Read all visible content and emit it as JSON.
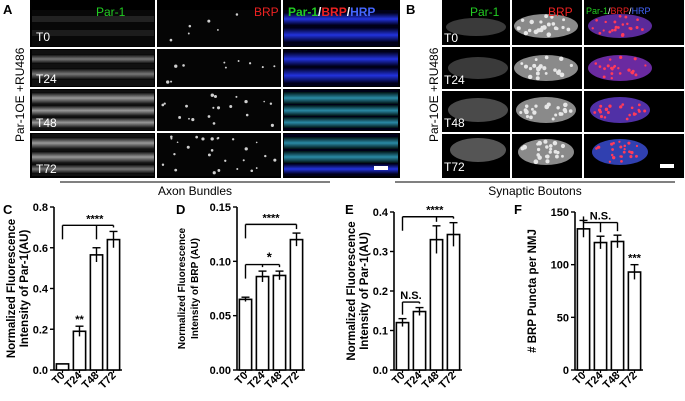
{
  "panel_letters": [
    "A",
    "B",
    "C",
    "D",
    "E",
    "F"
  ],
  "panel_a": {
    "headers": [
      {
        "text": "Par-1",
        "color": "#22cc22"
      },
      {
        "text": "BRP",
        "color": "#ee2222"
      }
    ],
    "merge_header": [
      {
        "text": "Par-1",
        "color": "#22cc22"
      },
      {
        "text": "/",
        "color": "#ffffff"
      },
      {
        "text": "BRP",
        "color": "#ee2222"
      },
      {
        "text": "/",
        "color": "#ffffff"
      },
      {
        "text": "HRP",
        "color": "#4466ff"
      }
    ],
    "side_label": "Par-1OE +RU486",
    "rows": [
      "T0",
      "T24",
      "T48",
      "T72"
    ]
  },
  "panel_b": {
    "headers": [
      {
        "text": "Par-1",
        "color": "#22cc22"
      },
      {
        "text": "BRP",
        "color": "#ee2222"
      }
    ],
    "merge_header": [
      {
        "text": "Par-1",
        "color": "#22cc22"
      },
      {
        "text": "/",
        "color": "#ffffff"
      },
      {
        "text": "BRP",
        "color": "#ee2222"
      },
      {
        "text": "/",
        "color": "#ffffff"
      },
      {
        "text": "HRP",
        "color": "#4466ff"
      }
    ],
    "side_label": "Par-1OE +RU486",
    "rows": [
      "T0",
      "T24",
      "T48",
      "T72"
    ]
  },
  "section_labels": {
    "left": "Axon Bundles",
    "right": "Synaptic Boutons"
  },
  "chart_data": [
    {
      "panel": "C",
      "type": "bar",
      "categories": [
        "T0",
        "T24",
        "T48",
        "T72"
      ],
      "values": [
        0.03,
        0.19,
        0.565,
        0.64
      ],
      "errors": [
        0.0,
        0.025,
        0.035,
        0.04
      ],
      "ylabel": "Normalized Fluorescence Intensity of Par-1(AU)",
      "ylim": [
        0,
        0.8
      ],
      "yticks": [
        0,
        0.2,
        0.4,
        0.6,
        0.8
      ],
      "ytick_labels": [
        "0.0",
        "0.2",
        "0.4",
        "0.6",
        "0.8"
      ],
      "star_labels": [
        {
          "bar": 1,
          "text": "**"
        }
      ],
      "brackets": [
        {
          "from": 0,
          "to": [
            2,
            3
          ],
          "y": 0.71,
          "text": "****"
        }
      ]
    },
    {
      "panel": "D",
      "type": "bar",
      "categories": [
        "T0",
        "T24",
        "T48",
        "T72"
      ],
      "values": [
        0.065,
        0.086,
        0.087,
        0.12
      ],
      "errors": [
        0.002,
        0.005,
        0.004,
        0.006
      ],
      "ylabel": "Normalized Fluorescence Intensity of BRP (AU)",
      "ylim": [
        0,
        0.15
      ],
      "yticks": [
        0,
        0.05,
        0.1,
        0.15
      ],
      "ytick_labels": [
        "0.00",
        "0.05",
        "0.10",
        "0.15"
      ],
      "star_labels": [],
      "brackets": [
        {
          "from": 0,
          "to": [
            1,
            2
          ],
          "y": 0.097,
          "text": "*"
        },
        {
          "from": 0,
          "to": [
            3
          ],
          "y": 0.134,
          "text": "****"
        }
      ]
    },
    {
      "panel": "E",
      "type": "bar",
      "categories": [
        "T0",
        "T24",
        "T48",
        "T72"
      ],
      "values": [
        0.12,
        0.148,
        0.33,
        0.343
      ],
      "errors": [
        0.01,
        0.01,
        0.035,
        0.03
      ],
      "ylabel": "Normalized Fluorescence Intensity of Par-1(AU)",
      "ylim": [
        0,
        0.4
      ],
      "yticks": [
        0,
        0.1,
        0.2,
        0.3,
        0.4
      ],
      "ytick_labels": [
        "0.0",
        "0.1",
        "0.2",
        "0.3",
        "0.4"
      ],
      "star_labels": [],
      "brackets": [
        {
          "from": 0,
          "to": [
            1
          ],
          "y": 0.172,
          "text": "N.S."
        },
        {
          "from": 0,
          "to": [
            2,
            3
          ],
          "y": 0.388,
          "text": "****"
        }
      ]
    },
    {
      "panel": "F",
      "type": "bar",
      "categories": [
        "T0",
        "T24",
        "T48",
        "T72"
      ],
      "values": [
        134,
        121,
        122,
        93
      ],
      "errors": [
        8,
        6,
        6,
        7
      ],
      "ylabel": "# BRP Puncta per NMJ",
      "ylim": [
        0,
        150
      ],
      "yticks": [
        0,
        50,
        100,
        150
      ],
      "ytick_labels": [
        "0",
        "50",
        "100",
        "150"
      ],
      "star_labels": [
        {
          "bar": 3,
          "text": "***"
        }
      ],
      "brackets": [
        {
          "from": 0,
          "to": [
            1,
            2
          ],
          "y": 140,
          "text": "N.S."
        }
      ]
    }
  ]
}
